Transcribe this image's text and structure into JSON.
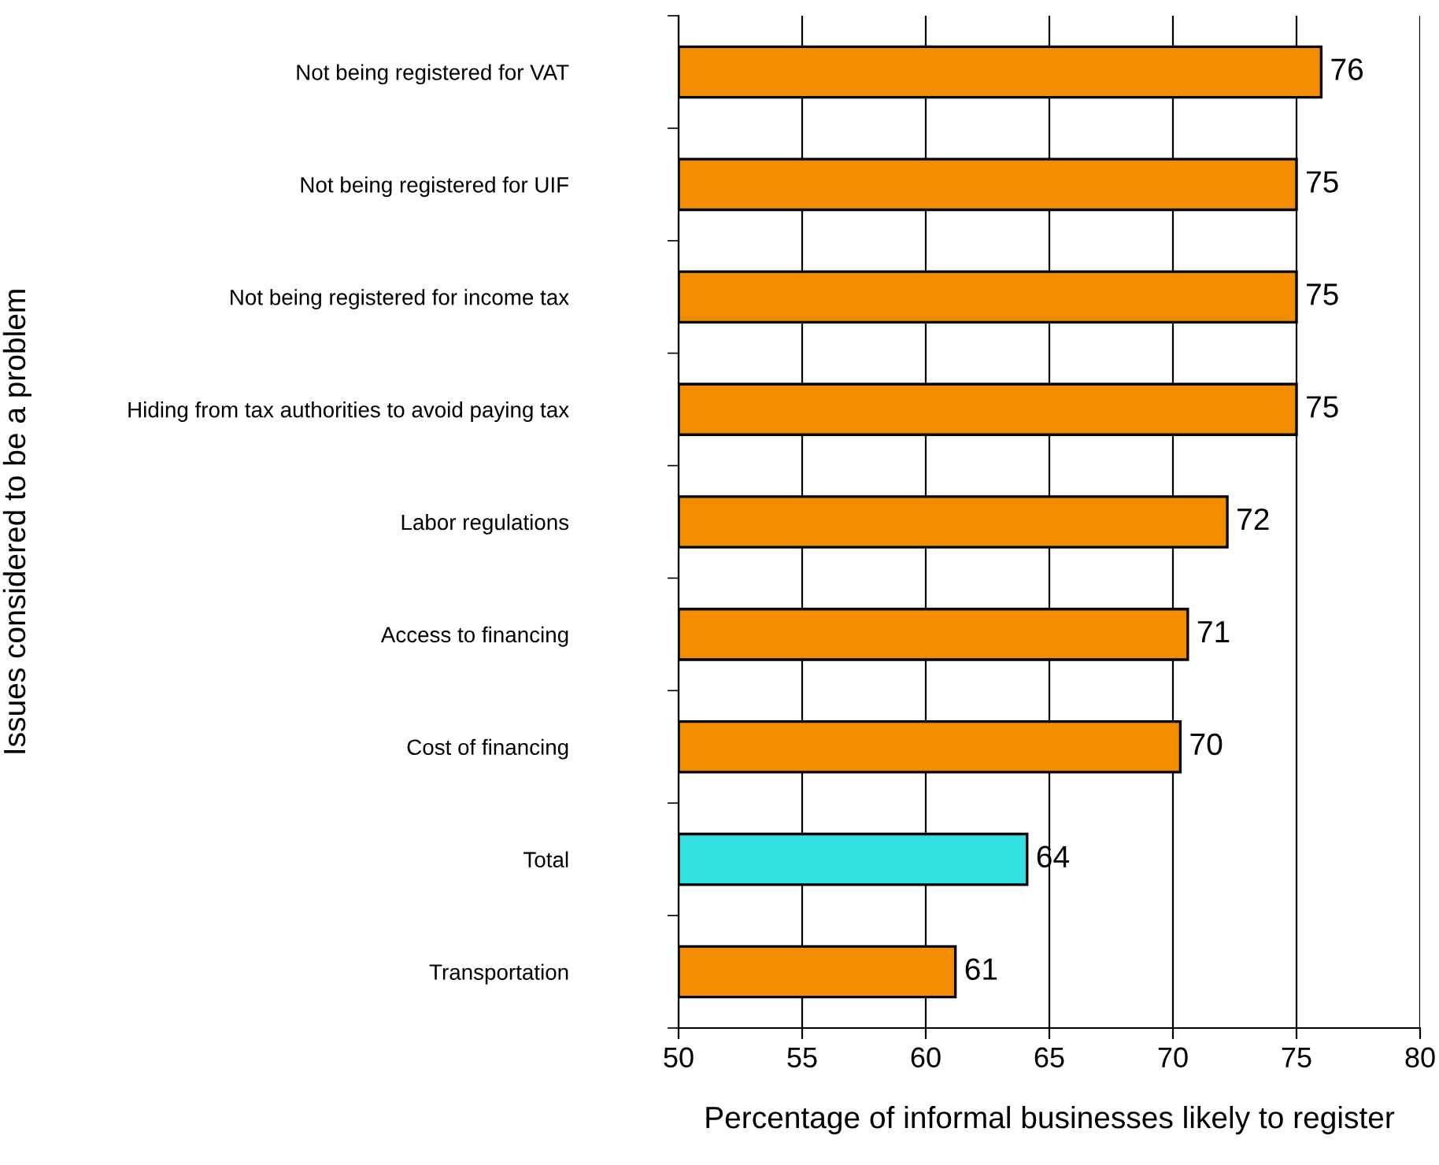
{
  "chart_data": {
    "type": "bar",
    "orientation": "horizontal",
    "ylabel": "Issues considered to be a problem",
    "xlabel": "Percentage of informal businesses likely to register",
    "categories": [
      "Not being registered for VAT",
      "Not being registered for UIF",
      "Not being registered for income tax",
      "Hiding from tax authorities to avoid paying tax",
      "Labor regulations",
      "Access to financing",
      "Cost of financing",
      "Total",
      "Transportation"
    ],
    "values": [
      76,
      75,
      75,
      75,
      72.2,
      70.6,
      70.3,
      64.1,
      61.2
    ],
    "value_labels": [
      "76",
      "75",
      "75",
      "75",
      "72",
      "71",
      "70",
      "64",
      "61"
    ],
    "colors": [
      "#f28c00",
      "#f28c00",
      "#f28c00",
      "#f28c00",
      "#f28c00",
      "#f28c00",
      "#f28c00",
      "#33e0e0",
      "#f28c00"
    ],
    "xlim": [
      50,
      80
    ],
    "xticks": [
      50,
      55,
      60,
      65,
      70,
      75,
      80
    ],
    "grid": "x"
  }
}
